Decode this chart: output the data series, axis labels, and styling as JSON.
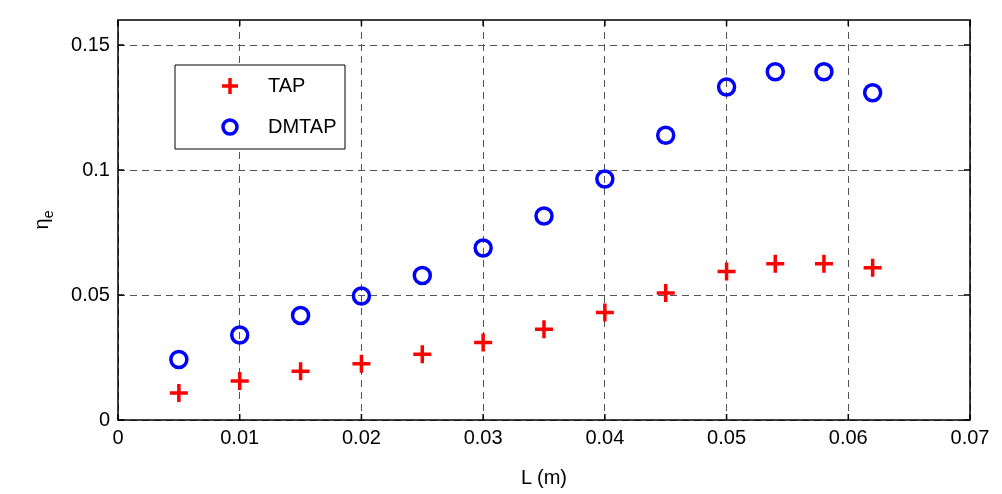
{
  "chart_data": {
    "type": "scatter",
    "xlabel": "L (m)",
    "ylabel": "η$_{e}$",
    "x": [
      0.005,
      0.01,
      0.015,
      0.02,
      0.025,
      0.03,
      0.035,
      0.04,
      0.045,
      0.05,
      0.054,
      0.058,
      0.062
    ],
    "series": [
      {
        "name": "TAP",
        "color": "#ff0000",
        "marker": "cross",
        "values": [
          0.0108,
          0.0156,
          0.0195,
          0.0225,
          0.0263,
          0.031,
          0.0363,
          0.043,
          0.0508,
          0.0594,
          0.0625,
          0.0625,
          0.0609
        ]
      },
      {
        "name": "DMTAP",
        "color": "#0000ff",
        "marker": "circle",
        "values": [
          0.0242,
          0.034,
          0.0418,
          0.0496,
          0.0578,
          0.0688,
          0.0816,
          0.0964,
          0.1139,
          0.1332,
          0.1393,
          0.1393,
          0.1309
        ]
      }
    ],
    "xlim": [
      0,
      0.07
    ],
    "xticks": [
      0,
      0.01,
      0.02,
      0.03,
      0.04,
      0.05,
      0.06,
      0.07
    ],
    "ylim": [
      0,
      0.16
    ],
    "yticks": [
      0,
      0.05,
      0.1,
      0.15
    ],
    "grid": true,
    "legend": "top left"
  }
}
